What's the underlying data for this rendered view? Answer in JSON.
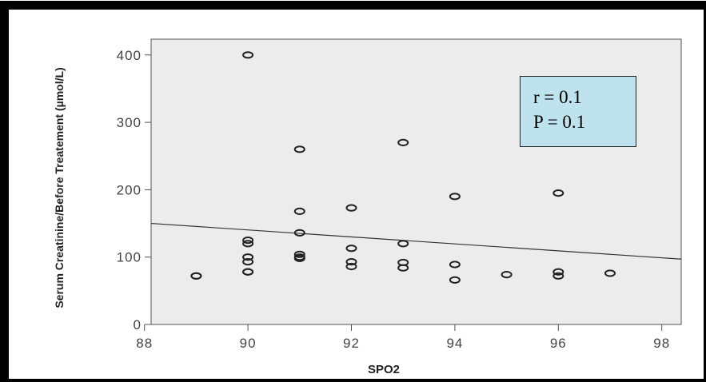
{
  "chart_data": {
    "type": "scatter",
    "title": "",
    "xlabel": "SPO2",
    "ylabel": "Serum Creatinine/Before Treatement (µmol/L)",
    "xlim": [
      88,
      99
    ],
    "ylim": [
      0,
      420
    ],
    "xticks": [
      88,
      90,
      92,
      94,
      96,
      98
    ],
    "yticks": [
      0,
      100,
      200,
      300,
      400
    ],
    "grid": false,
    "points": [
      {
        "x": 89,
        "y": 72
      },
      {
        "x": 89,
        "y": 72
      },
      {
        "x": 90,
        "y": 400
      },
      {
        "x": 90,
        "y": 125
      },
      {
        "x": 90,
        "y": 120
      },
      {
        "x": 90,
        "y": 100
      },
      {
        "x": 90,
        "y": 93
      },
      {
        "x": 90,
        "y": 78
      },
      {
        "x": 90,
        "y": 78
      },
      {
        "x": 91,
        "y": 260
      },
      {
        "x": 91,
        "y": 168
      },
      {
        "x": 91,
        "y": 136
      },
      {
        "x": 91,
        "y": 104
      },
      {
        "x": 91,
        "y": 100
      },
      {
        "x": 91,
        "y": 98
      },
      {
        "x": 92,
        "y": 173
      },
      {
        "x": 92,
        "y": 113
      },
      {
        "x": 92,
        "y": 93
      },
      {
        "x": 92,
        "y": 86
      },
      {
        "x": 93,
        "y": 270
      },
      {
        "x": 93,
        "y": 120
      },
      {
        "x": 93,
        "y": 92
      },
      {
        "x": 93,
        "y": 84
      },
      {
        "x": 94,
        "y": 190
      },
      {
        "x": 94,
        "y": 89
      },
      {
        "x": 94,
        "y": 66
      },
      {
        "x": 95,
        "y": 74
      },
      {
        "x": 96,
        "y": 195
      },
      {
        "x": 96,
        "y": 78
      },
      {
        "x": 96,
        "y": 72
      },
      {
        "x": 97,
        "y": 76
      }
    ],
    "fit_line": {
      "x": [
        88,
        99
      ],
      "y": [
        150,
        97
      ]
    },
    "annotations": {
      "r": "r = 0.1",
      "p": "P = 0.1"
    }
  },
  "colors": {
    "plot_background": "#ececec",
    "stats_box_fill": "#bfe3ee",
    "outer_border": "#000000"
  }
}
